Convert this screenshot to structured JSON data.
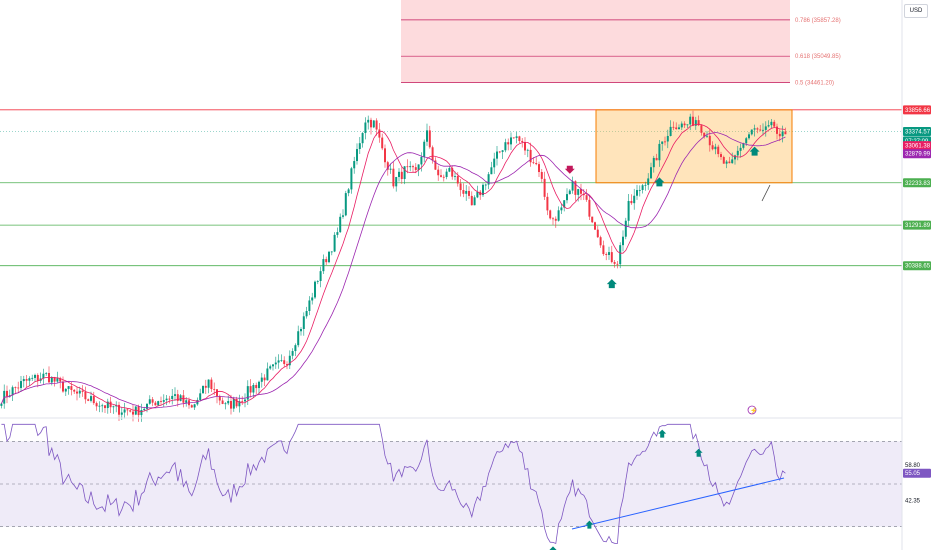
{
  "currency": "USD",
  "chart_data": {
    "type": "candlestick",
    "price_scale": {
      "min": 27000,
      "max": 36300
    },
    "rsi_scale": {
      "min": 20,
      "max": 80
    },
    "fib_zone": {
      "top": 36300,
      "bottom": 34461.2,
      "levels": [
        {
          "value": 35857.28,
          "label": "0.786 (35857.28)"
        },
        {
          "value": 35049.85,
          "label": "0.618 (35049.85)"
        },
        {
          "value": 34461.2,
          "label": "0.5 (34461.20)"
        }
      ]
    },
    "resistance": {
      "value": 33856.66,
      "label": "33856.66"
    },
    "supports": [
      {
        "value": 32233.83,
        "label": "32233.83"
      },
      {
        "value": 31291.89,
        "label": "31291.89"
      },
      {
        "value": 30388.65,
        "label": "30388.65"
      }
    ],
    "price_tags": [
      {
        "value": 33374.57,
        "label": "33374.57",
        "color": "#089981"
      },
      {
        "value": 33166,
        "label": "07:27:09",
        "color": "#089981"
      },
      {
        "value": 33061.38,
        "label": "33061.38",
        "color": "#e91e63"
      },
      {
        "value": 32879.99,
        "label": "32879.99",
        "color": "#9c27b0"
      }
    ],
    "consolidation_box": {
      "price_top": 33856.66,
      "price_bottom": 32233.83
    },
    "close_anchors": [
      [
        0,
        27450
      ],
      [
        8,
        27800
      ],
      [
        16,
        27950
      ],
      [
        24,
        27600
      ],
      [
        32,
        27400
      ],
      [
        40,
        27200
      ],
      [
        48,
        27150
      ],
      [
        56,
        27400
      ],
      [
        62,
        27500
      ],
      [
        68,
        27200
      ],
      [
        74,
        27800
      ],
      [
        80,
        27250
      ],
      [
        85,
        27400
      ],
      [
        90,
        27700
      ],
      [
        96,
        28050
      ],
      [
        102,
        28300
      ],
      [
        108,
        29200
      ],
      [
        114,
        30300
      ],
      [
        120,
        31100
      ],
      [
        126,
        32700
      ],
      [
        130,
        33650
      ],
      [
        133,
        33550
      ],
      [
        136,
        33000
      ],
      [
        140,
        32250
      ],
      [
        144,
        32500
      ],
      [
        148,
        32450
      ],
      [
        152,
        33300
      ],
      [
        156,
        32300
      ],
      [
        160,
        32500
      ],
      [
        164,
        32150
      ],
      [
        168,
        31700
      ],
      [
        172,
        32150
      ],
      [
        176,
        32700
      ],
      [
        180,
        33150
      ],
      [
        184,
        33250
      ],
      [
        188,
        32900
      ],
      [
        192,
        32550
      ],
      [
        196,
        31400
      ],
      [
        200,
        31600
      ],
      [
        204,
        32150
      ],
      [
        208,
        31900
      ],
      [
        212,
        31300
      ],
      [
        216,
        30600
      ],
      [
        220,
        30500
      ],
      [
        224,
        31700
      ],
      [
        228,
        32100
      ],
      [
        232,
        32500
      ],
      [
        236,
        33150
      ],
      [
        240,
        33550
      ],
      [
        244,
        33500
      ],
      [
        248,
        33650
      ],
      [
        252,
        33300
      ],
      [
        256,
        32800
      ],
      [
        260,
        32550
      ],
      [
        264,
        33050
      ],
      [
        268,
        33400
      ],
      [
        272,
        33350
      ],
      [
        276,
        33500
      ],
      [
        278,
        33150
      ],
      [
        280,
        33350
      ]
    ],
    "rsi_levels": [
      {
        "value": 58.8,
        "label": "58.80"
      },
      {
        "value": 42.35,
        "label": "42.35"
      }
    ],
    "rsi_current": {
      "value": 55.05,
      "label": "55.05"
    },
    "signals": [
      {
        "type": "down",
        "bar": 203
      },
      {
        "type": "up",
        "bar": 218
      },
      {
        "type": "up",
        "bar": 235
      },
      {
        "type": "up",
        "bar": 269
      }
    ],
    "rsi_signals": [
      {
        "bar": 197
      },
      {
        "bar": 210
      },
      {
        "bar": 236
      },
      {
        "bar": 249
      }
    ]
  }
}
